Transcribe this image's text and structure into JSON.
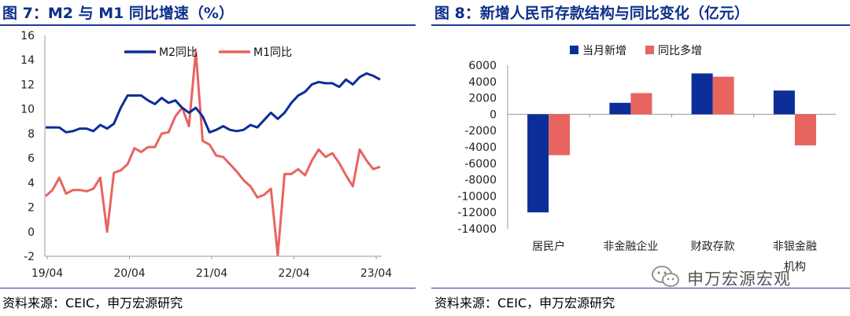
{
  "left": {
    "title": "图 7：M2 与 M1 同比增速（%）",
    "source": "资料来源：CEIC，申万宏源研究"
  },
  "right": {
    "title": "图 8：新增人民币存款结构与同比变化（亿元）",
    "source": "资料来源：CEIC，申万宏源研究"
  },
  "watermark": {
    "text": "申万宏源宏观"
  },
  "colors": {
    "blue": "#0d2d98",
    "red": "#e8645f",
    "title": "#0b2f8a"
  },
  "chart_data": [
    {
      "type": "line",
      "title": "M2 与 M1 同比增速（%）",
      "x_tick_labels": [
        "19/04",
        "20/04",
        "21/04",
        "22/04",
        "23/04"
      ],
      "ylim": [
        -2,
        16
      ],
      "y_ticks": [
        -2,
        0,
        2,
        4,
        6,
        8,
        10,
        12,
        14,
        16
      ],
      "legend": "top-center",
      "series": [
        {
          "name": "M2同比",
          "color": "#0d2d98",
          "values": [
            8.5,
            8.5,
            8.5,
            8.1,
            8.2,
            8.4,
            8.4,
            8.2,
            8.7,
            8.4,
            8.8,
            10.1,
            11.1,
            11.1,
            11.1,
            10.7,
            10.4,
            10.9,
            10.5,
            10.7,
            10.1,
            9.7,
            10.1,
            9.4,
            8.1,
            8.3,
            8.6,
            8.3,
            8.2,
            8.3,
            8.7,
            8.5,
            9.1,
            9.7,
            9.2,
            9.7,
            10.5,
            11.1,
            11.4,
            12.0,
            12.2,
            12.1,
            12.1,
            11.8,
            12.4,
            12.0,
            12.6,
            12.9,
            12.7,
            12.4
          ]
        },
        {
          "name": "M1同比",
          "color": "#e8645f",
          "values": [
            2.9,
            3.4,
            4.4,
            3.1,
            3.4,
            3.4,
            3.3,
            3.5,
            4.4,
            0.0,
            4.8,
            5.0,
            5.5,
            6.8,
            6.5,
            6.9,
            6.9,
            8.0,
            8.1,
            9.4,
            10.1,
            8.6,
            14.7,
            7.4,
            7.1,
            6.2,
            6.1,
            5.5,
            4.9,
            4.2,
            3.7,
            2.8,
            3.0,
            3.5,
            -1.9,
            4.7,
            4.7,
            5.1,
            4.6,
            5.8,
            6.7,
            6.1,
            6.4,
            5.6,
            4.6,
            3.7,
            6.7,
            5.8,
            5.1,
            5.3
          ]
        }
      ]
    },
    {
      "type": "bar",
      "title": "新增人民币存款结构与同比变化（亿元）",
      "categories": [
        "居民户",
        "非金融企业",
        "财政存款",
        "非银金融机构"
      ],
      "ylim": [
        -14000,
        6000
      ],
      "y_ticks": [
        6000,
        4000,
        2000,
        0,
        -2000,
        -4000,
        -6000,
        -8000,
        -10000,
        -12000,
        -14000
      ],
      "legend": "top-center",
      "series": [
        {
          "name": "当月新增",
          "color": "#0d2d98",
          "values": [
            -12000,
            1400,
            5000,
            2900
          ]
        },
        {
          "name": "同比多增",
          "color": "#e8645f",
          "values": [
            -5000,
            2600,
            4600,
            -3800
          ]
        }
      ]
    }
  ]
}
